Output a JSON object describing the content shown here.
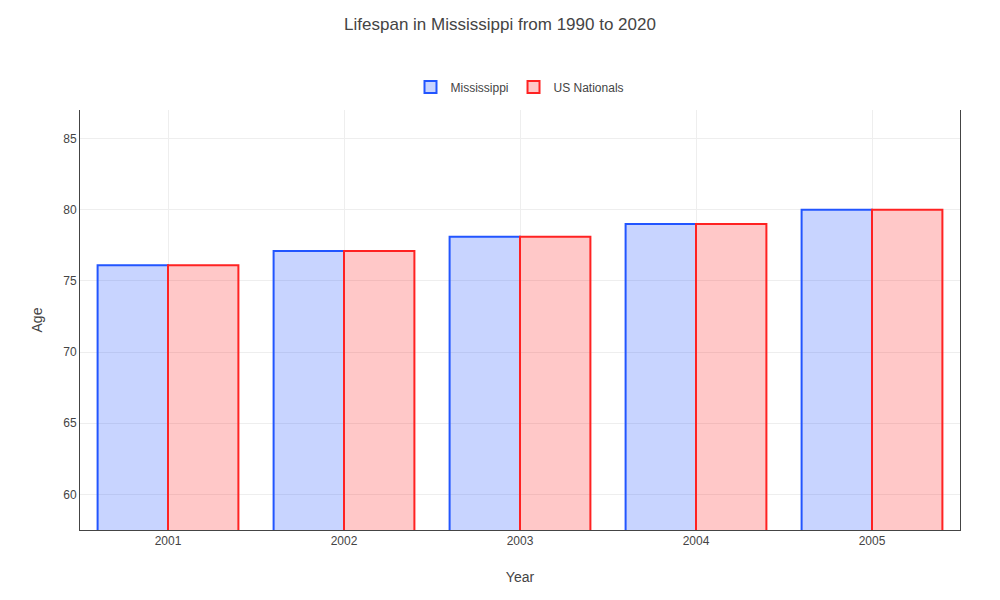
{
  "chart_data": {
    "type": "bar",
    "title": "Lifespan in Mississippi from 1990 to 2020",
    "x_label": "Year",
    "y_label": "Age",
    "categories": [
      "2001",
      "2002",
      "2003",
      "2004",
      "2005"
    ],
    "series": [
      {
        "name": "Mississippi",
        "color": "#2255ff",
        "values": [
          76.1,
          77.1,
          78.1,
          79.0,
          80.0
        ]
      },
      {
        "name": "US Nationals",
        "color": "#ff2222",
        "values": [
          76.1,
          77.1,
          78.1,
          79.0,
          80.0
        ]
      }
    ],
    "ylim": [
      57.5,
      87
    ],
    "yticks": [
      60,
      65,
      70,
      75,
      80,
      85
    ],
    "grid": true,
    "legend": "top"
  }
}
